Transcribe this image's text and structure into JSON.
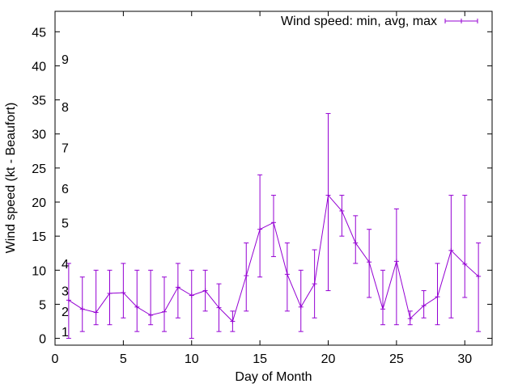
{
  "chart_data": {
    "type": "line",
    "xlabel": "Day of Month",
    "ylabel": "Wind speed (kt - Beaufort)",
    "xlim": [
      0,
      32
    ],
    "ylim": [
      -1,
      48
    ],
    "x_ticks": [
      0,
      5,
      10,
      15,
      20,
      25,
      30
    ],
    "y_ticks": [
      0,
      5,
      10,
      15,
      20,
      25,
      30,
      35,
      40,
      45
    ],
    "grid": false,
    "legend_position": "top-right",
    "beaufort_scale": [
      {
        "label": "1",
        "y": 1
      },
      {
        "label": "2",
        "y": 4
      },
      {
        "label": "3",
        "y": 7
      },
      {
        "label": "4",
        "y": 11
      },
      {
        "label": "5",
        "y": 17
      },
      {
        "label": "6",
        "y": 22
      },
      {
        "label": "7",
        "y": 28
      },
      {
        "label": "8",
        "y": 34
      },
      {
        "label": "9",
        "y": 41
      }
    ],
    "series": [
      {
        "name": "Wind speed: min, avg, max",
        "color": "#9400d3",
        "x": [
          1,
          2,
          3,
          4,
          5,
          6,
          7,
          8,
          9,
          10,
          11,
          12,
          13,
          14,
          15,
          16,
          17,
          18,
          19,
          20,
          21,
          22,
          23,
          24,
          25,
          26,
          27,
          28,
          29,
          30,
          31
        ],
        "avg": [
          5.6,
          4.3,
          3.8,
          6.6,
          6.7,
          4.6,
          3.4,
          3.9,
          7.5,
          6.3,
          7.0,
          4.5,
          2.5,
          9.2,
          16.0,
          17.0,
          9.4,
          4.6,
          8.0,
          21.0,
          18.7,
          14.0,
          11.2,
          4.3,
          11.3,
          2.9,
          4.8,
          6.1,
          12.9,
          10.9,
          9.1
        ],
        "min": [
          0.0,
          1.0,
          2.0,
          2.0,
          3.0,
          1.0,
          2.0,
          1.0,
          3.0,
          0.0,
          4.0,
          1.0,
          1.0,
          4.0,
          9.0,
          12.0,
          4.0,
          1.0,
          3.0,
          7.0,
          15.0,
          11.0,
          6.0,
          2.0,
          2.0,
          2.0,
          3.0,
          2.0,
          3.0,
          6.0,
          1.0
        ],
        "max": [
          11.0,
          9.0,
          10.0,
          10.0,
          11.0,
          10.0,
          10.0,
          9.0,
          11.0,
          10.0,
          10.0,
          8.0,
          4.0,
          14.0,
          24.0,
          21.0,
          14.0,
          10.0,
          13.0,
          33.0,
          21.0,
          18.0,
          16.0,
          10.0,
          19.0,
          4.0,
          7.0,
          11.0,
          21.0,
          21.0,
          14.0
        ]
      }
    ]
  }
}
